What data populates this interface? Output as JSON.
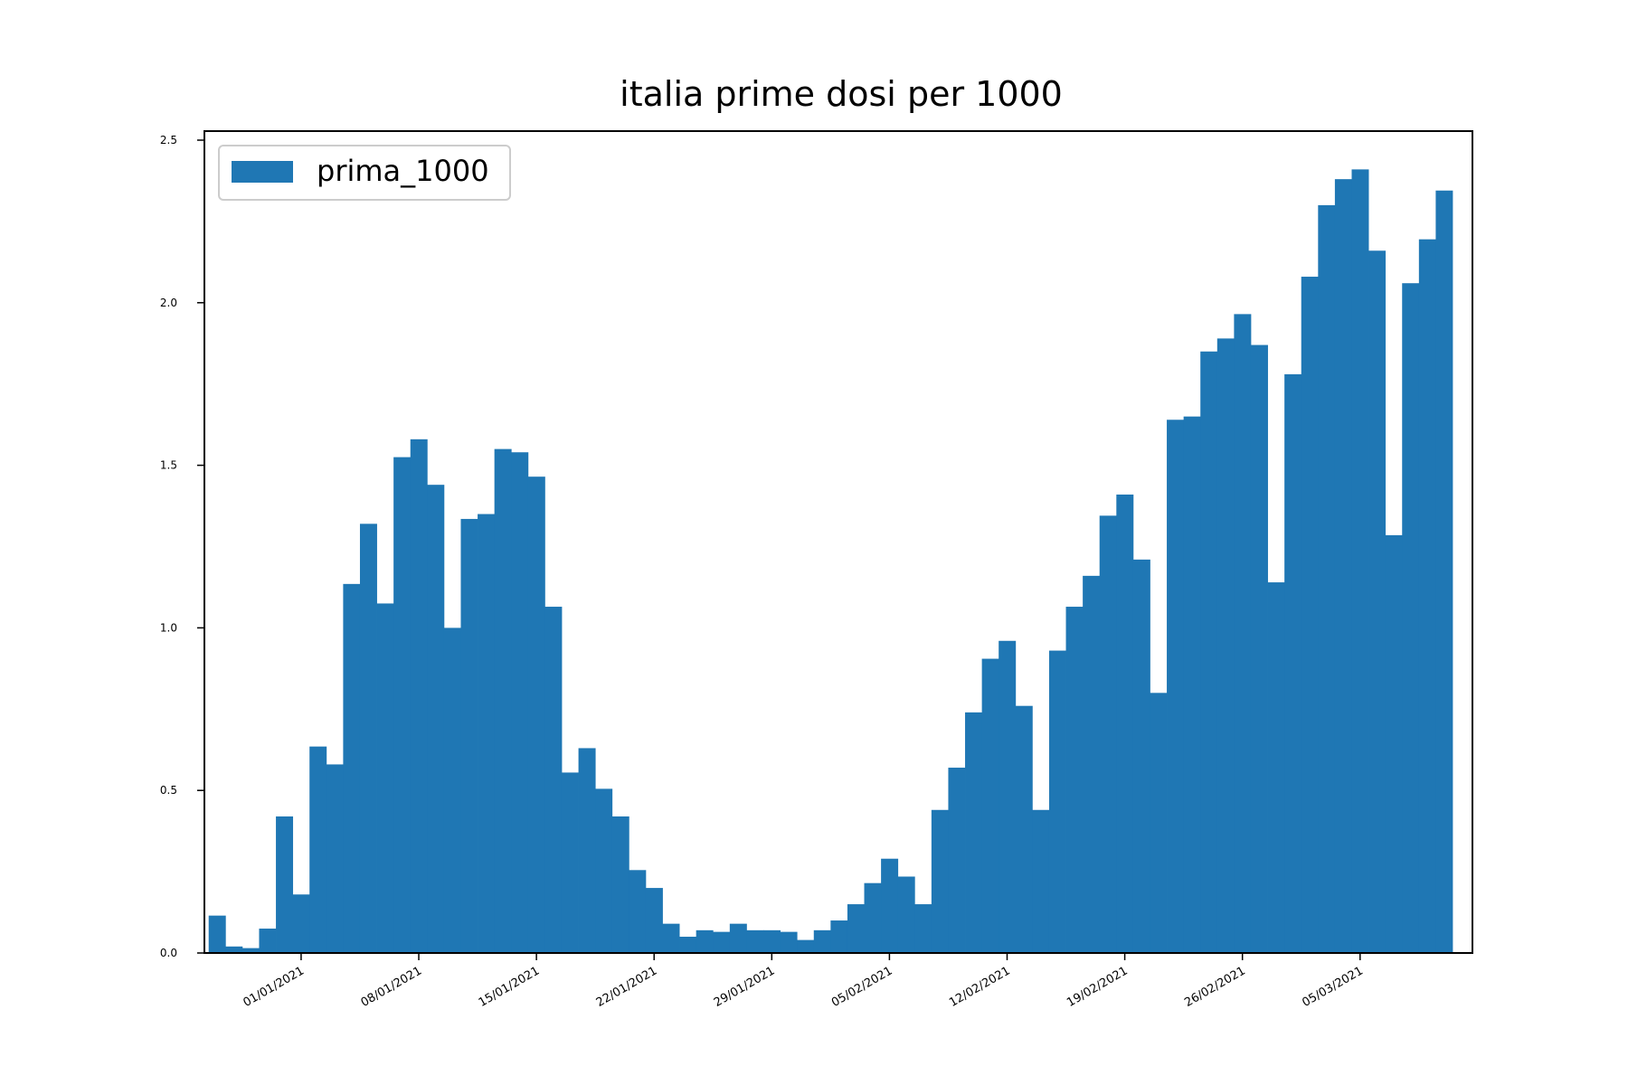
{
  "chart_data": {
    "type": "bar",
    "title": "italia prime dosi per 1000",
    "xlabel": "",
    "ylabel": "",
    "ylim": [
      0,
      2.5
    ],
    "yticks": [
      "0.0",
      "0.5",
      "1.0",
      "1.5",
      "2.0",
      "2.5"
    ],
    "x_tick_labels": [
      {
        "date": "01/01/2021",
        "label": "01/01/2021"
      },
      {
        "date": "08/01/2021",
        "label": "08/01/2021"
      },
      {
        "date": "15/01/2021",
        "label": "15/01/2021"
      },
      {
        "date": "22/01/2021",
        "label": "22/01/2021"
      },
      {
        "date": "29/01/2021",
        "label": "29/01/2021"
      },
      {
        "date": "05/02/2021",
        "label": "05/02/2021"
      },
      {
        "date": "12/02/2021",
        "label": "12/02/2021"
      },
      {
        "date": "19/02/2021",
        "label": "19/02/2021"
      },
      {
        "date": "26/02/2021",
        "label": "26/02/2021"
      },
      {
        "date": "05/03/2021",
        "label": "05/03/2021"
      }
    ],
    "legend": {
      "placement": "upper-left",
      "entries": [
        "prima_1000"
      ]
    },
    "grid": false,
    "colors": {
      "bar": "#1f77b4"
    },
    "series": [
      {
        "name": "prima_1000",
        "x": [
          "27/12/2020",
          "28/12/2020",
          "29/12/2020",
          "30/12/2020",
          "31/12/2020",
          "01/01/2021",
          "02/01/2021",
          "03/01/2021",
          "04/01/2021",
          "05/01/2021",
          "06/01/2021",
          "07/01/2021",
          "08/01/2021",
          "09/01/2021",
          "10/01/2021",
          "11/01/2021",
          "12/01/2021",
          "13/01/2021",
          "14/01/2021",
          "15/01/2021",
          "16/01/2021",
          "17/01/2021",
          "18/01/2021",
          "19/01/2021",
          "20/01/2021",
          "21/01/2021",
          "22/01/2021",
          "23/01/2021",
          "24/01/2021",
          "25/01/2021",
          "26/01/2021",
          "27/01/2021",
          "28/01/2021",
          "29/01/2021",
          "30/01/2021",
          "31/01/2021",
          "01/02/2021",
          "02/02/2021",
          "03/02/2021",
          "04/02/2021",
          "05/02/2021",
          "06/02/2021",
          "07/02/2021",
          "08/02/2021",
          "09/02/2021",
          "10/02/2021",
          "11/02/2021",
          "12/02/2021",
          "13/02/2021",
          "14/02/2021",
          "15/02/2021",
          "16/02/2021",
          "17/02/2021",
          "18/02/2021",
          "19/02/2021",
          "20/02/2021",
          "21/02/2021",
          "22/02/2021",
          "23/02/2021",
          "24/02/2021",
          "25/02/2021",
          "26/02/2021",
          "27/02/2021",
          "28/02/2021",
          "01/03/2021",
          "02/03/2021",
          "03/03/2021",
          "04/03/2021",
          "05/03/2021",
          "06/03/2021",
          "07/03/2021",
          "08/03/2021",
          "09/03/2021",
          "10/03/2021"
        ],
        "values": [
          0.115,
          0.02,
          0.015,
          0.075,
          0.42,
          0.18,
          0.635,
          0.58,
          1.135,
          1.32,
          1.075,
          1.525,
          1.58,
          1.44,
          1.0,
          1.335,
          1.35,
          1.55,
          1.54,
          1.465,
          1.065,
          0.555,
          0.63,
          0.505,
          0.42,
          0.255,
          0.2,
          0.09,
          0.05,
          0.07,
          0.065,
          0.09,
          0.07,
          0.07,
          0.065,
          0.04,
          0.07,
          0.1,
          0.15,
          0.215,
          0.29,
          0.235,
          0.15,
          0.44,
          0.57,
          0.74,
          0.905,
          0.96,
          0.76,
          0.44,
          0.93,
          1.065,
          1.16,
          1.345,
          1.41,
          1.21,
          0.8,
          1.64,
          1.65,
          1.85,
          1.89,
          1.965,
          1.87,
          1.14,
          1.78,
          2.08,
          2.3,
          2.38,
          2.41,
          2.16,
          1.285,
          2.06,
          2.195,
          2.345
        ]
      }
    ]
  }
}
